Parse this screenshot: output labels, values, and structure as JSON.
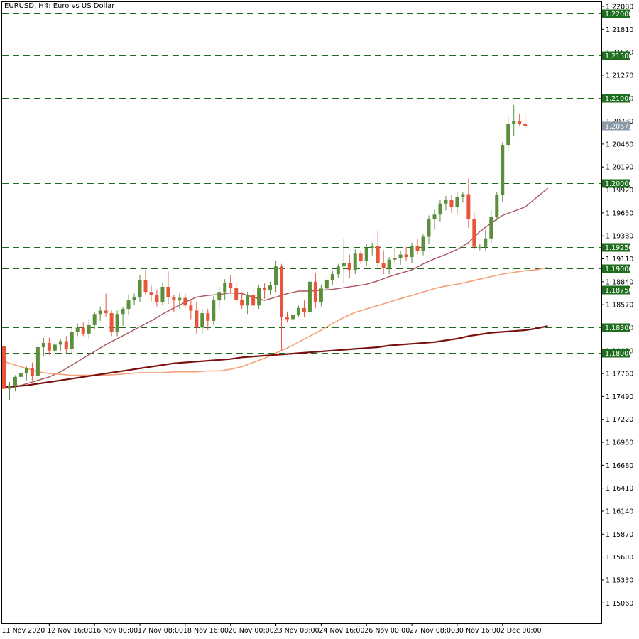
{
  "chart_data": {
    "type": "candlestick",
    "title": "EURUSD, H4:  Euro vs US Dollar",
    "ylim": [
      1.1482,
      1.2213
    ],
    "y_ticks": [
      "1.22080",
      "1.21810",
      "1.21540",
      "1.21270",
      "1.21000",
      "1.20730",
      "1.20460",
      "1.20190",
      "1.19920",
      "1.19650",
      "1.19380",
      "1.19110",
      "1.18840",
      "1.18570",
      "1.18300",
      "1.18030",
      "1.17760",
      "1.17490",
      "1.17220",
      "1.16950",
      "1.16680",
      "1.16410",
      "1.16140",
      "1.15870",
      "1.15600",
      "1.15330",
      "1.15060"
    ],
    "x_labels": [
      {
        "label": "11 Nov 2020",
        "index": 0
      },
      {
        "label": "12 Nov 16:00",
        "index": 8
      },
      {
        "label": "16 Nov 00:00",
        "index": 16
      },
      {
        "label": "17 Nov 08:00",
        "index": 24
      },
      {
        "label": "18 Nov 16:00",
        "index": 32
      },
      {
        "label": "20 Nov 00:00",
        "index": 40
      },
      {
        "label": "23 Nov 08:00",
        "index": 48
      },
      {
        "label": "24 Nov 16:00",
        "index": 56
      },
      {
        "label": "26 Nov 00:00",
        "index": 64
      },
      {
        "label": "27 Nov 08:00",
        "index": 72
      },
      {
        "label": "30 Nov 16:00",
        "index": 80
      },
      {
        "label": "2 Dec 00:00",
        "index": 88
      }
    ],
    "current_price": {
      "value": 1.20673,
      "label": "1.20673"
    },
    "levels": [
      {
        "value": 1.22,
        "label": "1.22000"
      },
      {
        "value": 1.215,
        "label": "1.21500"
      },
      {
        "value": 1.21,
        "label": "1.21000"
      },
      {
        "value": 1.2,
        "label": "1.20000"
      },
      {
        "value": 1.1925,
        "label": "1.19250"
      },
      {
        "value": 1.19,
        "label": "1.19000"
      },
      {
        "value": 1.1875,
        "label": "1.18750"
      },
      {
        "value": 1.183,
        "label": "1.18300"
      },
      {
        "value": 1.18,
        "label": "1.18000"
      }
    ],
    "candles": [
      [
        1.1808,
        1.1811,
        1.175,
        1.1758
      ],
      [
        1.1758,
        1.1766,
        1.1745,
        1.1762
      ],
      [
        1.1762,
        1.1774,
        1.1755,
        1.1772
      ],
      [
        1.1772,
        1.178,
        1.1762,
        1.1776
      ],
      [
        1.1776,
        1.1784,
        1.1768,
        1.1782
      ],
      [
        1.1782,
        1.1789,
        1.1768,
        1.1773
      ],
      [
        1.1773,
        1.1812,
        1.1755,
        1.1807
      ],
      [
        1.1807,
        1.1818,
        1.1796,
        1.1812
      ],
      [
        1.1812,
        1.1818,
        1.1798,
        1.1803
      ],
      [
        1.1803,
        1.1813,
        1.1796,
        1.181
      ],
      [
        1.181,
        1.1817,
        1.1802,
        1.1814
      ],
      [
        1.1814,
        1.182,
        1.18,
        1.1805
      ],
      [
        1.1805,
        1.183,
        1.18,
        1.1825
      ],
      [
        1.1825,
        1.1835,
        1.182,
        1.183
      ],
      [
        1.183,
        1.1836,
        1.182,
        1.1823
      ],
      [
        1.1823,
        1.184,
        1.1817,
        1.1833
      ],
      [
        1.1833,
        1.1848,
        1.1828,
        1.1846
      ],
      [
        1.1846,
        1.1855,
        1.1838,
        1.185
      ],
      [
        1.185,
        1.187,
        1.1843,
        1.1847
      ],
      [
        1.1847,
        1.185,
        1.182,
        1.1825
      ],
      [
        1.1825,
        1.185,
        1.182,
        1.1846
      ],
      [
        1.1846,
        1.1854,
        1.1832,
        1.1852
      ],
      [
        1.1852,
        1.1868,
        1.1845,
        1.1862
      ],
      [
        1.1862,
        1.187,
        1.1857,
        1.1866
      ],
      [
        1.1866,
        1.1892,
        1.186,
        1.1886
      ],
      [
        1.1886,
        1.1898,
        1.1868,
        1.1872
      ],
      [
        1.1872,
        1.188,
        1.1861,
        1.1868
      ],
      [
        1.1868,
        1.1875,
        1.1855,
        1.186
      ],
      [
        1.186,
        1.1882,
        1.1856,
        1.1878
      ],
      [
        1.1878,
        1.1896,
        1.1858,
        1.1866
      ],
      [
        1.1866,
        1.1868,
        1.1848,
        1.1862
      ],
      [
        1.1862,
        1.187,
        1.1852,
        1.1865
      ],
      [
        1.1865,
        1.187,
        1.1853,
        1.1856
      ],
      [
        1.1856,
        1.1863,
        1.184,
        1.185
      ],
      [
        1.185,
        1.186,
        1.1823,
        1.183
      ],
      [
        1.183,
        1.1852,
        1.1822,
        1.1847
      ],
      [
        1.1847,
        1.1852,
        1.1827,
        1.1838
      ],
      [
        1.1838,
        1.1867,
        1.1833,
        1.1862
      ],
      [
        1.1862,
        1.1878,
        1.1852,
        1.1872
      ],
      [
        1.1872,
        1.1887,
        1.1862,
        1.1883
      ],
      [
        1.1883,
        1.1892,
        1.187,
        1.1877
      ],
      [
        1.1877,
        1.1884,
        1.1856,
        1.1863
      ],
      [
        1.1863,
        1.1872,
        1.1852,
        1.1856
      ],
      [
        1.1856,
        1.1872,
        1.1846,
        1.1868
      ],
      [
        1.1868,
        1.1878,
        1.1848,
        1.1856
      ],
      [
        1.1856,
        1.188,
        1.1852,
        1.1877
      ],
      [
        1.1877,
        1.1882,
        1.1864,
        1.1874
      ],
      [
        1.1874,
        1.1884,
        1.1869,
        1.188
      ],
      [
        1.188,
        1.1909,
        1.1872,
        1.1902
      ],
      [
        1.1902,
        1.1905,
        1.1802,
        1.1842
      ],
      [
        1.1842,
        1.1849,
        1.1836,
        1.184
      ],
      [
        1.184,
        1.185,
        1.1835,
        1.1845
      ],
      [
        1.1845,
        1.1856,
        1.1842,
        1.1853
      ],
      [
        1.1853,
        1.1862,
        1.1842,
        1.1848
      ],
      [
        1.1848,
        1.189,
        1.1843,
        1.1884
      ],
      [
        1.1884,
        1.1894,
        1.1853,
        1.186
      ],
      [
        1.186,
        1.188,
        1.1855,
        1.1876
      ],
      [
        1.1876,
        1.189,
        1.1872,
        1.1886
      ],
      [
        1.1886,
        1.1897,
        1.188,
        1.1893
      ],
      [
        1.1893,
        1.1905,
        1.1888,
        1.1902
      ],
      [
        1.1902,
        1.1935,
        1.1883,
        1.1906
      ],
      [
        1.1906,
        1.1916,
        1.1888,
        1.1898
      ],
      [
        1.1898,
        1.1922,
        1.1893,
        1.1917
      ],
      [
        1.1917,
        1.1921,
        1.1905,
        1.1908
      ],
      [
        1.1908,
        1.1928,
        1.1903,
        1.1924
      ],
      [
        1.1924,
        1.193,
        1.1915,
        1.1926
      ],
      [
        1.1926,
        1.1944,
        1.1901,
        1.1906
      ],
      [
        1.1906,
        1.1921,
        1.1893,
        1.19
      ],
      [
        1.19,
        1.1913,
        1.1893,
        1.191
      ],
      [
        1.191,
        1.1924,
        1.1906,
        1.1912
      ],
      [
        1.1912,
        1.192,
        1.1904,
        1.1916
      ],
      [
        1.1916,
        1.1925,
        1.1908,
        1.1913
      ],
      [
        1.1913,
        1.193,
        1.1906,
        1.1926
      ],
      [
        1.1926,
        1.1935,
        1.1916,
        1.192
      ],
      [
        1.192,
        1.194,
        1.1915,
        1.1937
      ],
      [
        1.1937,
        1.1962,
        1.1929,
        1.1958
      ],
      [
        1.1958,
        1.197,
        1.1945,
        1.1963
      ],
      [
        1.1963,
        1.198,
        1.1955,
        1.1976
      ],
      [
        1.1976,
        1.1985,
        1.1968,
        1.198
      ],
      [
        1.198,
        1.1986,
        1.1965,
        1.1972
      ],
      [
        1.1972,
        1.199,
        1.1963,
        1.1984
      ],
      [
        1.1984,
        1.199,
        1.1977,
        1.1987
      ],
      [
        1.1987,
        1.2005,
        1.1947,
        1.1958
      ],
      [
        1.1958,
        1.1965,
        1.1922,
        1.1925
      ],
      [
        1.1925,
        1.1929,
        1.1921,
        1.1925
      ],
      [
        1.1925,
        1.1945,
        1.1921,
        1.1935
      ],
      [
        1.1935,
        1.1968,
        1.1929,
        1.196
      ],
      [
        1.196,
        1.199,
        1.1956,
        1.1986
      ],
      [
        1.1986,
        1.2048,
        1.1978,
        1.2045
      ],
      [
        1.2045,
        1.2078,
        1.2038,
        1.207
      ],
      [
        1.207,
        1.2092,
        1.2055,
        1.2073
      ],
      [
        1.2073,
        1.2082,
        1.2068,
        1.207
      ],
      [
        1.207,
        1.2081,
        1.2064,
        1.2067
      ]
    ],
    "moving_averages": [
      {
        "color": "#a8525a",
        "width": 1.4,
        "start": 0,
        "values": [
          1.176,
          1.176,
          1.1764,
          1.1768,
          1.1772,
          1.1778,
          1.1786,
          1.1794,
          1.1802,
          1.181,
          1.1817,
          1.1824,
          1.1831,
          1.1838,
          1.1846,
          1.1853,
          1.186,
          1.1866,
          1.1868,
          1.1869,
          1.1871,
          1.187,
          1.1866,
          1.1862,
          1.1866,
          1.187,
          1.1873,
          1.1873,
          1.1874,
          1.1875,
          1.1877,
          1.1879,
          1.1881,
          1.1885,
          1.189,
          1.1894,
          1.1898,
          1.1905,
          1.1911,
          1.1916,
          1.1922,
          1.193,
          1.1943,
          1.1953,
          1.1962,
          1.1967,
          1.1972,
          1.1983,
          1.1994
        ]
      },
      {
        "color": "#f4a078",
        "width": 1.6,
        "start": 0,
        "values": [
          1.179,
          1.1786,
          1.1782,
          1.1778,
          1.1776,
          1.1775,
          1.1774,
          1.1774,
          1.1774,
          1.1774,
          1.1775,
          1.1776,
          1.1777,
          1.1777,
          1.1777,
          1.1778,
          1.1778,
          1.1778,
          1.1779,
          1.1779,
          1.1781,
          1.1784,
          1.1789,
          1.1794,
          1.18,
          1.1806,
          1.1813,
          1.182,
          1.1827,
          1.1835,
          1.1842,
          1.1848,
          1.1852,
          1.1856,
          1.186,
          1.1864,
          1.1868,
          1.1872,
          1.1876,
          1.1879,
          1.1881,
          1.1884,
          1.1887,
          1.189,
          1.1893,
          1.1895,
          1.1897,
          1.1898,
          1.1901
        ]
      },
      {
        "color": "#7a1010",
        "width": 2.2,
        "start": 0,
        "values": [
          1.176,
          1.1761,
          1.1762,
          1.1764,
          1.1766,
          1.1768,
          1.177,
          1.1772,
          1.1774,
          1.1776,
          1.1778,
          1.178,
          1.1782,
          1.1784,
          1.1786,
          1.1788,
          1.1789,
          1.179,
          1.1791,
          1.1792,
          1.1793,
          1.1795,
          1.1796,
          1.1797,
          1.1798,
          1.1799,
          1.18,
          1.1801,
          1.1802,
          1.1803,
          1.1804,
          1.1805,
          1.1806,
          1.1807,
          1.1809,
          1.181,
          1.1811,
          1.1812,
          1.1813,
          1.1815,
          1.1817,
          1.182,
          1.1822,
          1.1824,
          1.1825,
          1.1826,
          1.1827,
          1.1829,
          1.1832
        ]
      }
    ],
    "colors": {
      "bull": "#5b8f3b",
      "bear": "#e8553a",
      "level_line": "#1a6b1a",
      "level_label_bg": "#1f6d1f",
      "current_line": "#8a9aa8",
      "current_label_bg": "#8a9aa8"
    }
  }
}
